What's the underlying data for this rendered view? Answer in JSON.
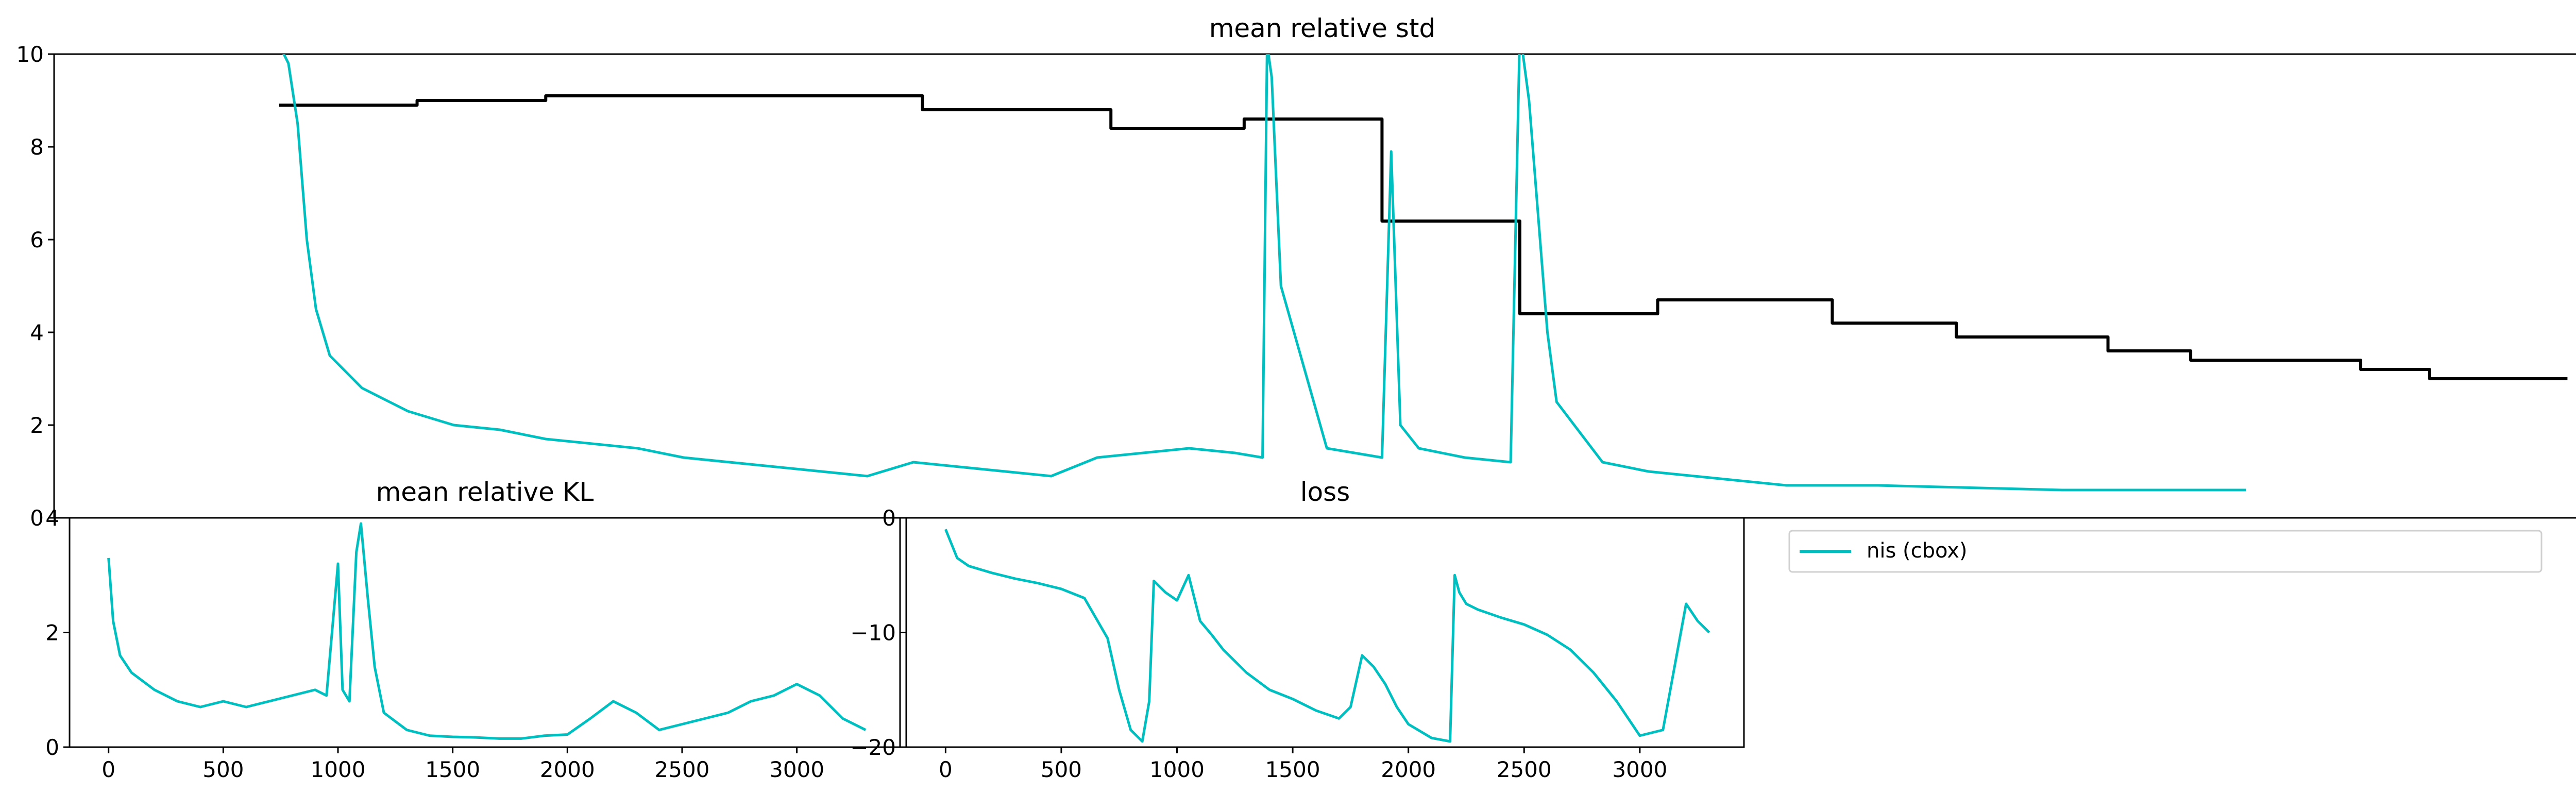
{
  "chart_data": [
    {
      "type": "line",
      "title": "mean relative std",
      "ylim": [
        0,
        10
      ],
      "xlim": [
        -170,
        5350
      ],
      "yticks": [
        "0",
        "2",
        "4",
        "6",
        "8",
        "10"
      ],
      "grid": false,
      "series": [
        {
          "name": "",
          "color": "#000000",
          "style": "step",
          "x": [
            320,
            620,
            900,
            1300,
            1720,
            2130,
            2420,
            2720,
            3020,
            3320,
            3700,
            3970,
            4300,
            4480,
            4850,
            5000
          ],
          "values": [
            8.9,
            9.0,
            9.1,
            9.1,
            8.8,
            8.4,
            8.6,
            6.4,
            4.4,
            4.7,
            4.2,
            3.9,
            3.6,
            3.4,
            3.2,
            3.0
          ]
        },
        {
          "name": "",
          "color": "#00bfc0",
          "style": "line",
          "x": [
            320,
            340,
            360,
            380,
            400,
            430,
            500,
            600,
            700,
            800,
            900,
            1000,
            1100,
            1200,
            1300,
            1400,
            1500,
            1600,
            1700,
            1800,
            1900,
            2000,
            2100,
            2200,
            2300,
            2400,
            2460,
            2470,
            2480,
            2500,
            2600,
            2720,
            2740,
            2760,
            2800,
            2900,
            3000,
            3020,
            3040,
            3060,
            3080,
            3100,
            3200,
            3300,
            3400,
            3500,
            3600,
            3800,
            4000,
            4200,
            4400,
            4600
          ],
          "values": [
            10.2,
            9.8,
            8.5,
            6.0,
            4.5,
            3.5,
            2.8,
            2.3,
            2.0,
            1.9,
            1.7,
            1.6,
            1.5,
            1.3,
            1.2,
            1.1,
            1.0,
            0.9,
            1.2,
            1.1,
            1.0,
            0.9,
            1.3,
            1.4,
            1.5,
            1.4,
            1.3,
            10.2,
            9.5,
            5.0,
            1.5,
            1.3,
            7.9,
            2.0,
            1.5,
            1.3,
            1.2,
            10.5,
            9.0,
            6.5,
            4.0,
            2.5,
            1.2,
            1.0,
            0.9,
            0.8,
            0.7,
            0.7,
            0.65,
            0.6,
            0.6,
            0.6
          ]
        }
      ]
    },
    {
      "type": "line",
      "title": "mean relative KL",
      "ylim": [
        0,
        4
      ],
      "xlim": [
        -170,
        3450
      ],
      "xticks": [
        "0",
        "500",
        "1000",
        "1500",
        "2000",
        "2500",
        "3000"
      ],
      "yticks": [
        "0",
        "2",
        "4"
      ],
      "series": [
        {
          "name": "nis (cbox)",
          "color": "#00bfc0",
          "x": [
            0,
            20,
            50,
            100,
            200,
            300,
            400,
            500,
            600,
            700,
            800,
            900,
            950,
            1000,
            1020,
            1050,
            1080,
            1100,
            1130,
            1160,
            1200,
            1300,
            1400,
            1500,
            1600,
            1700,
            1800,
            1900,
            2000,
            2100,
            2200,
            2300,
            2400,
            2500,
            2600,
            2700,
            2800,
            2900,
            3000,
            3100,
            3200,
            3300
          ],
          "values": [
            3.3,
            2.2,
            1.6,
            1.3,
            1.0,
            0.8,
            0.7,
            0.8,
            0.7,
            0.8,
            0.9,
            1.0,
            0.9,
            3.2,
            1.0,
            0.8,
            3.4,
            3.9,
            2.6,
            1.4,
            0.6,
            0.3,
            0.2,
            0.18,
            0.17,
            0.15,
            0.15,
            0.2,
            0.22,
            0.5,
            0.8,
            0.6,
            0.3,
            0.4,
            0.5,
            0.6,
            0.8,
            0.9,
            1.1,
            0.9,
            0.5,
            0.3
          ]
        }
      ]
    },
    {
      "type": "line",
      "title": "loss",
      "ylim": [
        -20,
        0
      ],
      "xlim": [
        -170,
        3450
      ],
      "xticks": [
        "0",
        "500",
        "1000",
        "1500",
        "2000",
        "2500",
        "3000"
      ],
      "yticks": [
        "0",
        "-10",
        "-20"
      ],
      "series": [
        {
          "name": "nis (cbox)",
          "color": "#00bfc0",
          "x": [
            0,
            50,
            100,
            200,
            300,
            400,
            500,
            600,
            700,
            750,
            800,
            850,
            880,
            900,
            950,
            1000,
            1050,
            1100,
            1150,
            1200,
            1300,
            1400,
            1500,
            1600,
            1700,
            1750,
            1800,
            1850,
            1900,
            1950,
            2000,
            2100,
            2180,
            2200,
            2220,
            2250,
            2300,
            2400,
            2500,
            2600,
            2700,
            2800,
            2900,
            3000,
            3100,
            3150,
            3200,
            3250,
            3300
          ],
          "values": [
            -1.0,
            -3.5,
            -4.2,
            -4.8,
            -5.3,
            -5.7,
            -6.2,
            -7.0,
            -10.5,
            -15.0,
            -18.5,
            -19.5,
            -16.0,
            -5.5,
            -6.5,
            -7.2,
            -5.0,
            -9.0,
            -10.2,
            -11.5,
            -13.5,
            -15.0,
            -15.8,
            -16.8,
            -17.5,
            -16.5,
            -12.0,
            -13.0,
            -14.5,
            -16.5,
            -18.0,
            -19.2,
            -19.5,
            -5.0,
            -6.5,
            -7.5,
            -8.0,
            -8.7,
            -9.3,
            -10.2,
            -11.5,
            -13.5,
            -16.0,
            -19.0,
            -18.5,
            -13.0,
            -7.5,
            -9.0,
            -10.0
          ]
        }
      ]
    }
  ],
  "legend": {
    "label": "nis (cbox)",
    "color": "#00bfc0",
    "placement": "upper-left"
  }
}
